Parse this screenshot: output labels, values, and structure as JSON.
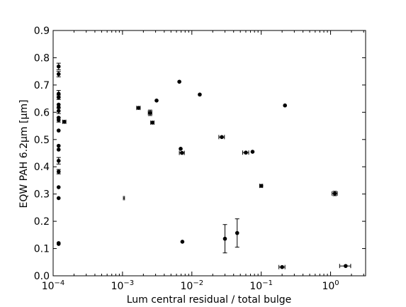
{
  "chart_data": {
    "type": "scatter",
    "title": "",
    "xlabel": "Lum central residual / total bulge",
    "ylabel": "EQW PAH 6.2μm [μm]",
    "xscale": "log",
    "xlim": [
      0.0001,
      3.2
    ],
    "ylim": [
      0.0,
      0.9
    ],
    "grid": false,
    "legend": "none",
    "x_ticks": [
      {
        "value": 0.0001,
        "base": "10",
        "exp": "−4"
      },
      {
        "value": 0.001,
        "base": "10",
        "exp": "−3"
      },
      {
        "value": 0.01,
        "base": "10",
        "exp": "−2"
      },
      {
        "value": 0.1,
        "base": "10",
        "exp": "−1"
      },
      {
        "value": 1,
        "base": "10",
        "exp": "0"
      }
    ],
    "y_ticks": [
      {
        "value": 0.0,
        "label": "0.0"
      },
      {
        "value": 0.1,
        "label": "0.1"
      },
      {
        "value": 0.2,
        "label": "0.2"
      },
      {
        "value": 0.3,
        "label": "0.3"
      },
      {
        "value": 0.4,
        "label": "0.4"
      },
      {
        "value": 0.5,
        "label": "0.5"
      },
      {
        "value": 0.6,
        "label": "0.6"
      },
      {
        "value": 0.7,
        "label": "0.7"
      },
      {
        "value": 0.8,
        "label": "0.8"
      },
      {
        "value": 0.9,
        "label": "0.9"
      }
    ],
    "points": [
      {
        "x": 0.00012,
        "y": 0.768,
        "yerr": 0.012
      },
      {
        "x": 0.00012,
        "y": 0.74,
        "yerr": 0.01
      },
      {
        "x": 0.00012,
        "y": 0.668,
        "yerr": 0.012
      },
      {
        "x": 0.00012,
        "y": 0.655,
        "yerr": 0.008
      },
      {
        "x": 0.00012,
        "y": 0.628
      },
      {
        "x": 0.00012,
        "y": 0.618
      },
      {
        "x": 0.00012,
        "y": 0.605,
        "yerr": 0.01
      },
      {
        "x": 0.00012,
        "y": 0.58
      },
      {
        "x": 0.00012,
        "y": 0.572,
        "yerr": 0.008
      },
      {
        "x": 0.00012,
        "y": 0.533
      },
      {
        "x": 0.00012,
        "y": 0.477
      },
      {
        "x": 0.00012,
        "y": 0.463
      },
      {
        "x": 0.00012,
        "y": 0.422,
        "yerr": 0.012
      },
      {
        "x": 0.00012,
        "y": 0.382,
        "yerr": 0.008
      },
      {
        "x": 0.00012,
        "y": 0.325
      },
      {
        "x": 0.00012,
        "y": 0.285
      },
      {
        "x": 0.00012,
        "y": 0.12
      },
      {
        "x": 0.00012,
        "y": 0.117
      },
      {
        "x": 0.000145,
        "y": 0.565,
        "xerr": [
          8e-06,
          8e-06
        ]
      },
      {
        "x": 0.00105,
        "y": 0.285,
        "xerr": [
          2e-05,
          2e-05
        ],
        "marker": false
      },
      {
        "x": 0.0017,
        "y": 0.616,
        "xerr": [
          0.0001,
          0.0001
        ]
      },
      {
        "x": 0.0025,
        "y": 0.598,
        "xerr": [
          0.00015,
          0.00015
        ],
        "yerr": 0.01
      },
      {
        "x": 0.0027,
        "y": 0.562,
        "xerr": [
          0.00015,
          0.00015
        ]
      },
      {
        "x": 0.0031,
        "y": 0.643
      },
      {
        "x": 0.0066,
        "y": 0.712
      },
      {
        "x": 0.0069,
        "y": 0.466
      },
      {
        "x": 0.0072,
        "y": 0.451,
        "xerr": [
          0.0006,
          0.0006
        ]
      },
      {
        "x": 0.0073,
        "y": 0.125
      },
      {
        "x": 0.013,
        "y": 0.665
      },
      {
        "x": 0.027,
        "y": 0.509,
        "xerr": [
          0.0025,
          0.0025
        ]
      },
      {
        "x": 0.03,
        "y": 0.136,
        "yerr": 0.052
      },
      {
        "x": 0.045,
        "y": 0.157,
        "yerr": 0.052
      },
      {
        "x": 0.06,
        "y": 0.452,
        "xerr": [
          0.006,
          0.006
        ]
      },
      {
        "x": 0.075,
        "y": 0.455
      },
      {
        "x": 0.1,
        "y": 0.33,
        "xerr": [
          0.005,
          0.005
        ]
      },
      {
        "x": 0.2,
        "y": 0.032,
        "xerr": [
          0.02,
          0.02
        ]
      },
      {
        "x": 0.22,
        "y": 0.625
      },
      {
        "x": 1.15,
        "y": 0.302,
        "xerr": [
          0.1,
          0.1
        ],
        "yerr": 0.008
      },
      {
        "x": 1.65,
        "y": 0.036,
        "xerr": [
          0.3,
          0.3
        ]
      }
    ]
  }
}
